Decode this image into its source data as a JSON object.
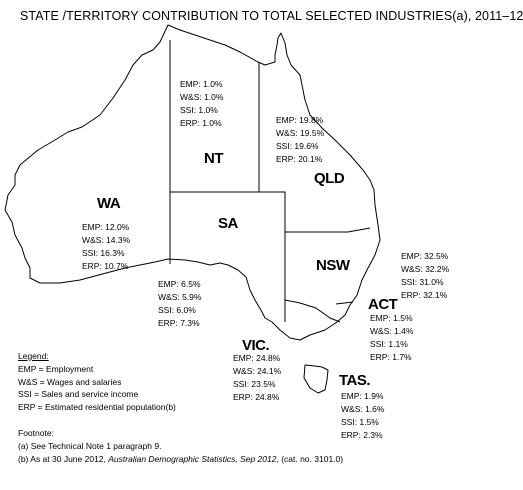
{
  "title": "STATE /TERRITORY CONTRIBUTION TO TOTAL SELECTED INDUSTRIES(a), 2011–12",
  "states": {
    "nt": {
      "name": "NT",
      "stats": [
        "EMP: 1.0%",
        "W&S: 1.0%",
        "SSI: 1.0%",
        "ERP: 1.0%"
      ]
    },
    "qld": {
      "name": "QLD",
      "stats": [
        "EMP: 19.8%",
        "W&S: 19.5%",
        "SSI: 19.6%",
        "ERP: 20.1%"
      ]
    },
    "wa": {
      "name": "WA",
      "stats": [
        "EMP: 12.0%",
        "W&S: 14.3%",
        "SSI: 16.3%",
        "ERP: 10.7%"
      ]
    },
    "sa": {
      "name": "SA",
      "stats": [
        "EMP: 6.5%",
        "W&S: 5.9%",
        "SSI: 6.0%",
        "ERP: 7.3%"
      ]
    },
    "nsw": {
      "name": "NSW",
      "stats": [
        "EMP: 32.5%",
        "W&S: 32.2%",
        "SSI: 31.0%",
        "ERP: 32.1%"
      ]
    },
    "act": {
      "name": "ACT",
      "stats": [
        "EMP: 1.5%",
        "W&S: 1.4%",
        "SSI: 1.1%",
        "ERP: 1.7%"
      ]
    },
    "vic": {
      "name": "VIC.",
      "stats": [
        "EMP: 24.8%",
        "W&S: 24.1%",
        "SSI: 23.5%",
        "ERP: 24.8%"
      ]
    },
    "tas": {
      "name": "TAS.",
      "stats": [
        "EMP: 1.9%",
        "W&S: 1.6%",
        "SSI: 1.5%",
        "ERP: 2.3%"
      ]
    }
  },
  "legend": {
    "title": "Legend:",
    "items": [
      "EMP = Employment",
      "W&S = Wages and salaries",
      "SSI = Sales and service income",
      "ERP = Estimated residential population(b)"
    ]
  },
  "footnote": {
    "title": "Footnote:",
    "a": "(a) See Technical Note 1 paragraph 9.",
    "b_prefix": "(b) As at 30 June 2012, ",
    "b_italic": "Australian Demographic Statistics, Sep 2012",
    "b_suffix": ", (cat. no. 3101.0)"
  }
}
